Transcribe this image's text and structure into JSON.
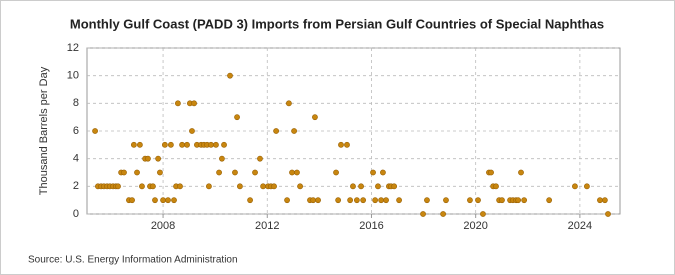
{
  "chart_data": {
    "type": "scatter",
    "title": "Monthly Gulf Coast (PADD 3) Imports from Persian Gulf Countries of Special Naphthas",
    "y_label": "Thousand Barrels per Day",
    "source": "Source: U.S. Energy Information Administration",
    "color": "#c8860f",
    "grid": true,
    "xlim": [
      2005.08,
      2025.54
    ],
    "ylim": [
      0,
      12
    ],
    "xticks": [
      2008,
      2012,
      2016,
      2020,
      2024
    ],
    "yticks": [
      0,
      2,
      4,
      6,
      8,
      10,
      12
    ],
    "x": [
      2005.39,
      2005.5,
      2005.62,
      2005.73,
      2005.85,
      2005.96,
      2006.08,
      2006.19,
      2006.27,
      2006.39,
      2006.5,
      2006.69,
      2006.81,
      2006.88,
      2007.0,
      2007.11,
      2007.19,
      2007.31,
      2007.42,
      2007.5,
      2007.61,
      2007.69,
      2007.81,
      2007.88,
      2008.0,
      2008.07,
      2008.19,
      2008.3,
      2008.42,
      2008.5,
      2008.57,
      2008.65,
      2008.73,
      2008.92,
      2009.03,
      2009.11,
      2009.19,
      2009.3,
      2009.46,
      2009.57,
      2009.69,
      2009.76,
      2009.84,
      2010.03,
      2010.15,
      2010.26,
      2010.34,
      2010.57,
      2010.76,
      2010.84,
      2010.95,
      2011.34,
      2011.53,
      2011.72,
      2011.84,
      2012.03,
      2012.14,
      2012.26,
      2012.34,
      2012.76,
      2012.83,
      2012.95,
      2013.03,
      2013.14,
      2013.26,
      2013.64,
      2013.76,
      2013.83,
      2013.95,
      2014.64,
      2014.72,
      2014.83,
      2015.06,
      2015.18,
      2015.29,
      2015.44,
      2015.6,
      2015.68,
      2016.06,
      2016.14,
      2016.25,
      2016.37,
      2016.44,
      2016.56,
      2016.67,
      2016.75,
      2016.87,
      2017.06,
      2017.98,
      2018.13,
      2018.75,
      2018.86,
      2019.78,
      2020.09,
      2020.28,
      2020.51,
      2020.59,
      2020.67,
      2020.78,
      2020.9,
      2021.01,
      2021.32,
      2021.43,
      2021.55,
      2021.63,
      2021.74,
      2021.86,
      2022.82,
      2023.81,
      2024.27,
      2024.77,
      2024.96,
      2025.08
    ],
    "values": [
      6,
      2,
      2,
      2,
      2,
      2,
      2,
      2,
      2,
      3,
      3,
      1,
      1,
      5,
      3,
      5,
      2,
      4,
      4,
      2,
      2,
      1,
      4,
      3,
      1,
      5,
      1,
      5,
      1,
      2,
      8,
      2,
      5,
      5,
      8,
      6,
      8,
      5,
      5,
      5,
      5,
      2,
      5,
      5,
      3,
      4,
      5,
      10,
      3,
      7,
      2,
      1,
      3,
      4,
      2,
      2,
      2,
      2,
      6,
      1,
      8,
      3,
      6,
      3,
      2,
      1,
      1,
      7,
      1,
      3,
      1,
      5,
      5,
      1,
      2,
      1,
      2,
      1,
      3,
      1,
      2,
      1,
      3,
      1,
      2,
      2,
      2,
      1,
      0,
      1,
      0,
      1,
      1,
      1,
      0,
      3,
      3,
      2,
      2,
      1,
      1,
      1,
      1,
      1,
      1,
      3,
      1,
      1,
      2,
      2,
      1,
      1,
      0
    ]
  }
}
